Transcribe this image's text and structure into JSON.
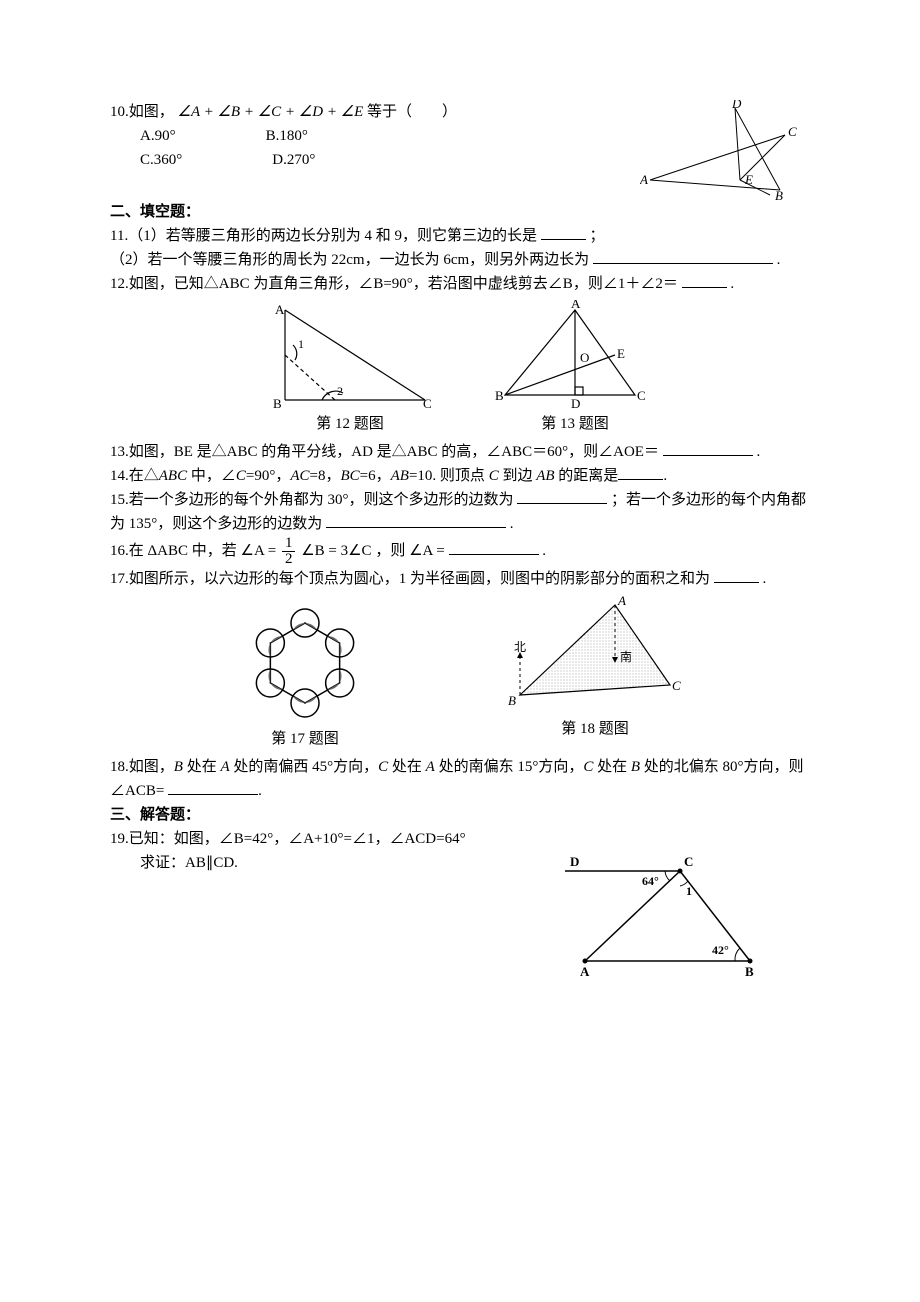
{
  "q10": {
    "stem_pre": "10.如图，",
    "expr": "∠A + ∠B + ∠C + ∠D + ∠E",
    "stem_post": " 等于（　　）",
    "A": "A.90°",
    "B": "B.180°",
    "C": "C.360°",
    "D": "D.270°",
    "fig_labels": {
      "A": "A",
      "B": "B",
      "C": "C",
      "D": "D",
      "E": "E"
    }
  },
  "sec2": "二、填空题：",
  "q11": {
    "part1_pre": "11.（1）若等腰三角形的两边长分别为 4 和 9，则它第三边的长是",
    "part1_post": "；",
    "part2_pre": "（2）若一个等腰三角形的周长为 22cm，一边长为 6cm，则另外两边长为",
    "part2_post": "."
  },
  "q12": {
    "pre": "12.如图，已知△ABC 为直角三角形，∠B=90°，若沿图中虚线剪去∠B，则∠1＋∠2＝",
    "post": ".",
    "fig_labels": {
      "A": "A",
      "B": "B",
      "C": "C",
      "ang1": "1",
      "ang2": "2"
    }
  },
  "cap12": "第 12 题图",
  "cap13": "第 13 题图",
  "q13": {
    "pre": "13.如图，BE 是△ABC 的角平分线，AD 是△ABC 的高，∠ABC＝60°，则∠AOE＝",
    "post": ".",
    "fig_labels": {
      "A": "A",
      "B": "B",
      "C": "C",
      "D": "D",
      "E": "E",
      "O": "O"
    }
  },
  "q14": {
    "pre": "14.在△",
    "abc": "ABC",
    "mid1": " 中，∠",
    "c": "C",
    "mid2": "=90°，",
    "ac": "AC",
    "mid3": "=8，",
    "bc": "BC",
    "mid4": "=6，",
    "ab": "AB",
    "mid5": "=10. 则顶点 ",
    "c2": "C",
    "mid6": " 到边 ",
    "ab2": "AB",
    "mid7": " 的距离是",
    "post": "."
  },
  "q15": {
    "pre": "15.若一个多边形的每个外角都为 30°，则这个多边形的边数为",
    "mid": "；若一个多边形的每个内角都为 135°，则这个多边形的边数为",
    "post": "."
  },
  "q16": {
    "pre": "16.在 ",
    "tri": "ΔABC",
    "mid1": " 中，若 ",
    "angA1": "∠A =",
    "frac_num": "1",
    "frac_den": "2",
    "angB": "∠B = 3∠C",
    "mid2": "，则 ",
    "angA2": "∠A =",
    "post": "."
  },
  "q17": {
    "text": "17.如图所示，以六边形的每个顶点为圆心，1 为半径画圆，则图中的阴影部分的面积之和为 ",
    "post": " ."
  },
  "cap17": "第 17 题图",
  "cap18": "第 18 题图",
  "q18": {
    "pre": "18.如图，",
    "b": "B",
    "t1": " 处在 ",
    "a": "A",
    "t2": " 处的南偏西 45°方向，",
    "c": "C",
    "t3": " 处在 ",
    "a2": "A",
    "t4": " 处的南偏东 15°方向，",
    "c2": "C",
    "t5": " 处在 ",
    "b2": "B",
    "t6": " 处的北偏东 80°方向，则∠ACB= ",
    "post": ".",
    "fig_labels": {
      "A": "A",
      "B": "B",
      "C": "C",
      "north": "北",
      "south": "南"
    }
  },
  "sec3": "三、解答题：",
  "q19": {
    "line1": "19.已知：如图，∠B=42°，∠A+10°=∠1，∠ACD=64°",
    "line2": "求证：AB∥CD.",
    "fig_labels": {
      "A": "A",
      "B": "B",
      "C": "C",
      "D": "D",
      "ang64": "64°",
      "ang1": "1",
      "ang42": "42°"
    }
  },
  "colors": {
    "line": "#000000",
    "dashed": "#000000",
    "fill_shade": "#b8b8b8",
    "fill_dark": "#555555"
  }
}
